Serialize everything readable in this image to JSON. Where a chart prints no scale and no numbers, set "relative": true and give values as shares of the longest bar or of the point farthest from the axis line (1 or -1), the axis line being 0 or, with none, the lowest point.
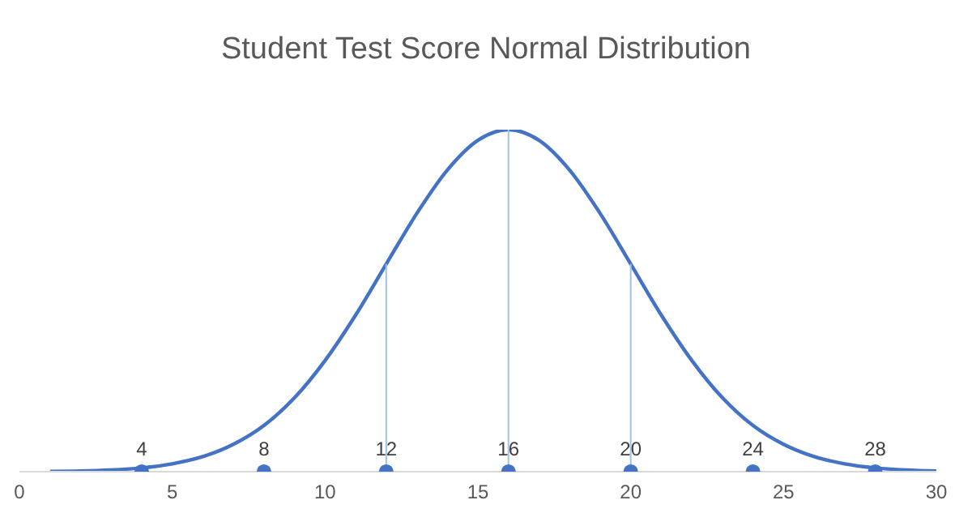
{
  "chart_data": {
    "type": "line",
    "title": "Student Test Score Normal Distribution",
    "relative": true,
    "xlim": [
      0,
      30
    ],
    "xticks": [
      0,
      5,
      10,
      15,
      20,
      25,
      30
    ],
    "grid": false,
    "series": [
      {
        "color": "#4472c4",
        "marker": "none",
        "x": [
          1,
          2,
          3,
          4,
          5,
          6,
          7,
          8,
          9,
          10,
          11,
          12,
          13,
          14,
          15,
          16,
          17,
          18,
          19,
          20,
          21,
          22,
          23,
          24,
          25,
          26,
          27,
          28,
          29,
          30
        ],
        "values": [
          0.001,
          0.002,
          0.005,
          0.011,
          0.023,
          0.044,
          0.08,
          0.135,
          0.216,
          0.325,
          0.458,
          0.607,
          0.755,
          0.882,
          0.969,
          1,
          0.969,
          0.882,
          0.755,
          0.607,
          0.458,
          0.325,
          0.216,
          0.135,
          0.08,
          0.044,
          0.023,
          0.011,
          0.005,
          0.002
        ]
      },
      {
        "type": "line",
        "color": "#9dc3e6",
        "marker": "none",
        "x": [
          12,
          12
        ],
        "values": [
          0,
          0.607
        ]
      },
      {
        "type": "line",
        "color": "#9dc3e6",
        "marker": "none",
        "x": [
          16,
          16
        ],
        "values": [
          0,
          1
        ]
      },
      {
        "type": "line",
        "color": "#9dc3e6",
        "marker": "none",
        "x": [
          20,
          20
        ],
        "values": [
          0,
          0.607
        ]
      },
      {
        "type": "scatter",
        "color": "#4472c4",
        "marker": "circle",
        "x": [
          4,
          8,
          12,
          16,
          20,
          24,
          28
        ],
        "values": [
          0,
          0,
          0,
          0,
          0,
          0,
          0
        ]
      }
    ],
    "annotations": [
      {
        "text": "4",
        "x": 4,
        "y": 0
      },
      {
        "text": "8",
        "x": 8,
        "y": 0
      },
      {
        "text": "12",
        "x": 12,
        "y": 0
      },
      {
        "text": "16",
        "x": 16,
        "y": 0
      },
      {
        "text": "20",
        "x": 20,
        "y": 0
      },
      {
        "text": "24",
        "x": 24,
        "y": 0
      },
      {
        "text": "28",
        "x": 28,
        "y": 0
      }
    ]
  }
}
